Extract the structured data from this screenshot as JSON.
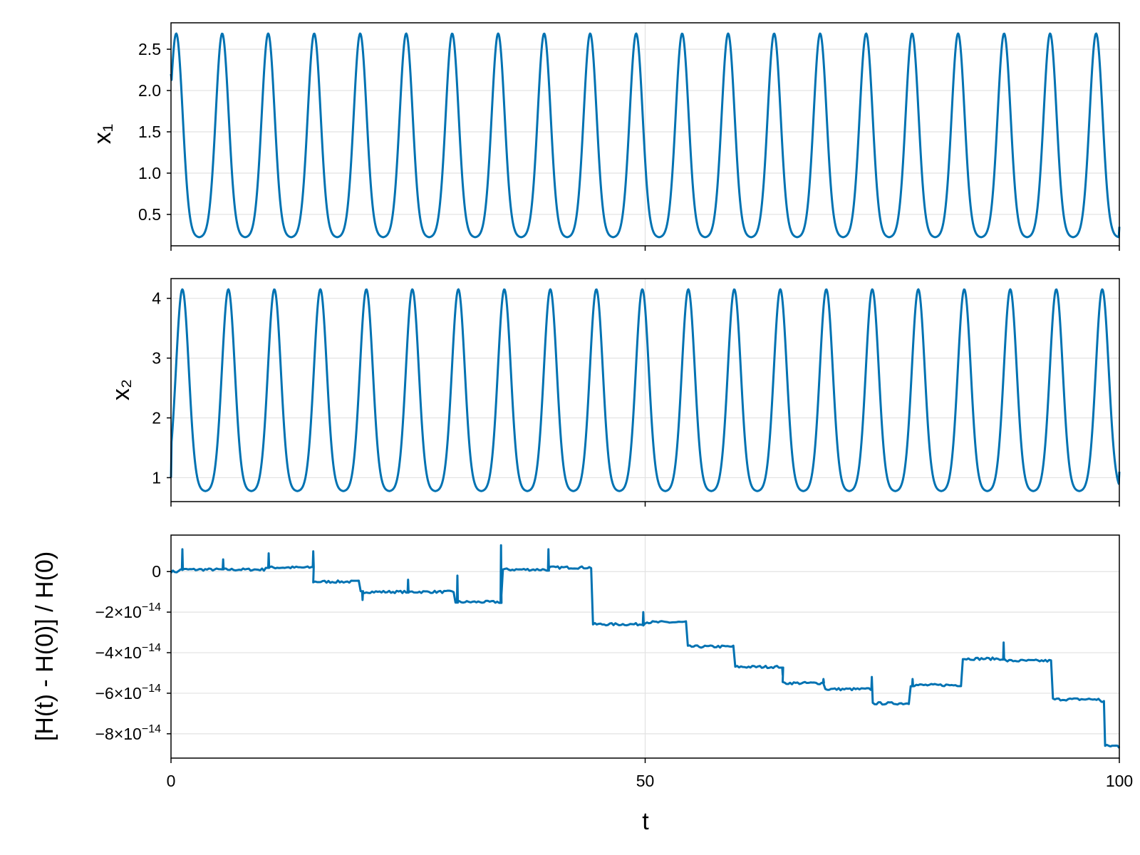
{
  "chart_data": [
    {
      "type": "line",
      "id": "panel-x1",
      "title": "",
      "xlabel": "",
      "ylabel": "x₁",
      "xlim": [
        0,
        100
      ],
      "ylim": [
        0.12,
        2.82
      ],
      "yticks": [
        0.5,
        1.0,
        1.5,
        2.0,
        2.5
      ],
      "ytick_labels": [
        "0.5",
        "1.0",
        "1.5",
        "2.0",
        "2.5"
      ],
      "xticks": [
        0,
        50,
        100
      ],
      "grid": true,
      "color": "#0072b2",
      "series": [
        {
          "period": 4.85,
          "peak_times": [
            0.55,
            5.4,
            10.25,
            15.1,
            19.95,
            24.8,
            29.65,
            34.5,
            39.35,
            44.2,
            49.05,
            53.9,
            58.75,
            63.6,
            68.45,
            73.3,
            78.15,
            83.0,
            87.85,
            92.7,
            97.55
          ],
          "x_start": 0,
          "y_start": 2.2,
          "x_end": 100,
          "y_end": 0.35,
          "max": 2.69,
          "min": 0.22
        }
      ]
    },
    {
      "type": "line",
      "id": "panel-x2",
      "title": "",
      "xlabel": "",
      "ylabel": "x₂",
      "xlim": [
        0,
        100
      ],
      "ylim": [
        0.6,
        4.33
      ],
      "yticks": [
        1,
        2,
        3,
        4
      ],
      "ytick_labels": [
        "1",
        "2",
        "3",
        "4"
      ],
      "xticks": [
        0,
        50,
        100
      ],
      "grid": true,
      "color": "#0072b2",
      "series": [
        {
          "period": 4.85,
          "peak_times": [
            1.2,
            6.05,
            10.9,
            15.75,
            20.6,
            25.45,
            30.3,
            35.15,
            40.0,
            44.85,
            49.7,
            54.55,
            59.4,
            64.25,
            69.1,
            73.95,
            78.8,
            83.65,
            88.5,
            93.35,
            98.2
          ],
          "x_start": 0,
          "y_start": 1.0,
          "x_end": 100,
          "y_end": 1.1,
          "max": 4.15,
          "min": 0.77
        }
      ]
    },
    {
      "type": "line",
      "id": "panel-energy-error",
      "title": "",
      "xlabel": "t",
      "ylabel": "[H(t) - H(0)] / H(0)",
      "xlim": [
        0,
        100
      ],
      "ylim": [
        -9.2e-14,
        1.8e-14
      ],
      "yticks": [
        0,
        -2e-14,
        -4e-14,
        -6e-14,
        -8e-14
      ],
      "ytick_labels": [
        {
          "mantissa": "0",
          "exponent": ""
        },
        {
          "mantissa": "−2×10",
          "exponent": "−14"
        },
        {
          "mantissa": "−4×10",
          "exponent": "−14"
        },
        {
          "mantissa": "−6×10",
          "exponent": "−14"
        },
        {
          "mantissa": "−8×10",
          "exponent": "−14"
        }
      ],
      "xticks": [
        0,
        50,
        100
      ],
      "xtick_labels": [
        "0",
        "50",
        "100"
      ],
      "grid": true,
      "color": "#0072b2",
      "series": [
        {
          "step_x": [
            0,
            1,
            5,
            10,
            15,
            20,
            25,
            30,
            35,
            40,
            44.5,
            50,
            54.5,
            59.5,
            64.5,
            69,
            74,
            78,
            83.5,
            88,
            93,
            98,
            98.5,
            100
          ],
          "step_y": [
            0,
            1e-15,
            1e-15,
            2e-15,
            -5e-15,
            -1e-14,
            -1e-14,
            -1.5e-14,
            1e-15,
            2e-15,
            -2.6e-14,
            -2.5e-14,
            -3.7e-14,
            -4.7e-14,
            -5.5e-14,
            -5.8e-14,
            -6.5e-14,
            -5.6e-14,
            -4.3e-14,
            -4.4e-14,
            -6.3e-14,
            -6.4e-14,
            -8.6e-14,
            -8.7e-14
          ],
          "spike_x": [
            1.2,
            5.5,
            10.3,
            15.0,
            20.2,
            25.0,
            30.2,
            34.8,
            39.8,
            49.8,
            64.5,
            68.8,
            73.9,
            78.2,
            87.8
          ],
          "spike_y": [
            1.1e-14,
            6e-15,
            9e-15,
            1e-14,
            -1.4e-14,
            -4e-15,
            -2e-15,
            1.3e-14,
            1.1e-14,
            -2e-14,
            -5.1e-14,
            -5.3e-14,
            -5.2e-14,
            -5.3e-14,
            -3.5e-14
          ]
        }
      ]
    }
  ]
}
